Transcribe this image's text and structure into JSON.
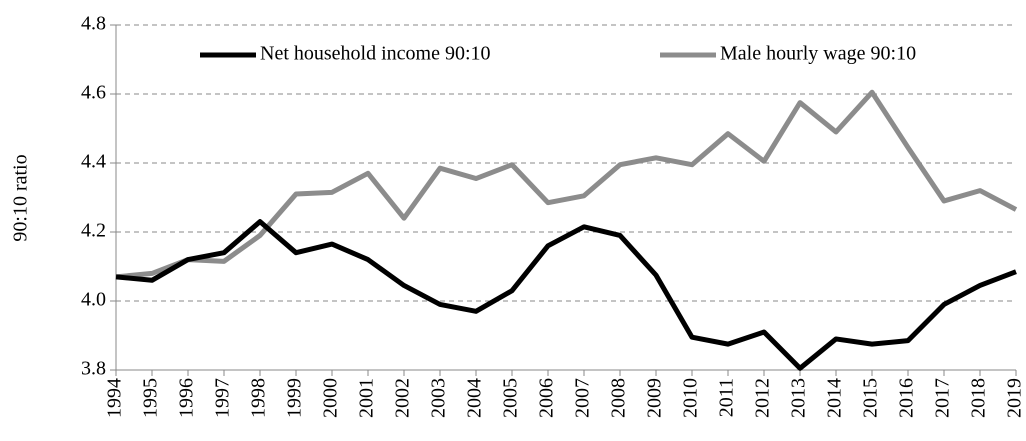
{
  "chart_data": {
    "type": "line",
    "y_label": "90:10 ratio",
    "categories": [
      "1994",
      "1995",
      "1996",
      "1997",
      "1998",
      "1999",
      "2000",
      "2001",
      "2002",
      "2003",
      "2004",
      "2005",
      "2006",
      "2007",
      "2008",
      "2009",
      "2010",
      "2011",
      "2012",
      "2013",
      "2014",
      "2015",
      "2016",
      "2017",
      "2018",
      "2019"
    ],
    "series": [
      {
        "name": "Net household income 90:10",
        "color": "#000000",
        "values": [
          4.07,
          4.06,
          4.12,
          4.14,
          4.23,
          4.14,
          4.165,
          4.12,
          4.045,
          3.99,
          3.97,
          4.03,
          4.16,
          4.215,
          4.19,
          4.075,
          3.895,
          3.875,
          3.91,
          3.805,
          3.89,
          3.875,
          3.885,
          3.99,
          4.045,
          4.085
        ]
      },
      {
        "name": "Male hourly wage 90:10",
        "color": "#8c8c8c",
        "values": [
          4.07,
          4.08,
          4.12,
          4.115,
          4.19,
          4.31,
          4.315,
          4.37,
          4.24,
          4.385,
          4.355,
          4.395,
          4.285,
          4.305,
          4.395,
          4.415,
          4.395,
          4.485,
          4.405,
          4.575,
          4.49,
          4.605,
          4.445,
          4.29,
          4.32,
          4.265
        ]
      }
    ],
    "ylim": [
      3.8,
      4.8
    ],
    "yticks": [
      3.8,
      {
        "value": 4,
        "label": "4.0"
      },
      4.2,
      4.4,
      4.6,
      4.8
    ],
    "grid": true,
    "legend": "top"
  }
}
